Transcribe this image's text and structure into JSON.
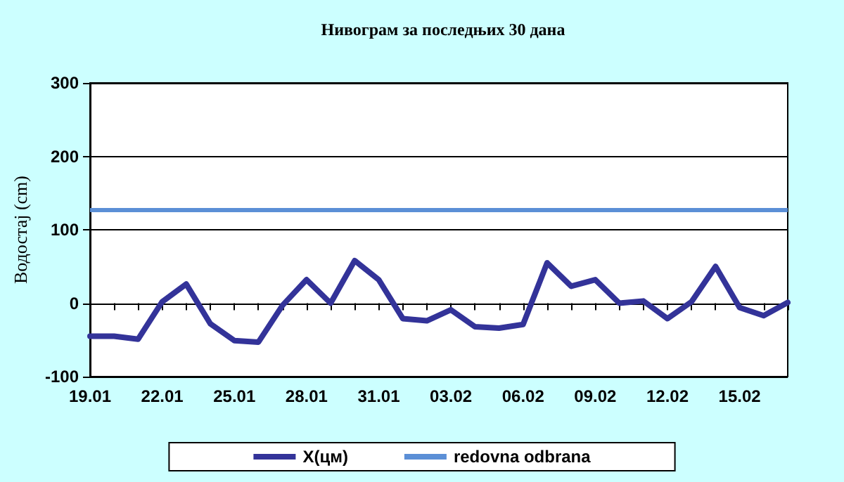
{
  "chart_data": {
    "type": "line",
    "title": "Нивограм за последњих 30 дана",
    "ylabel": "Водостај (cm)",
    "categories": [
      "19.01",
      null,
      null,
      "22.01",
      null,
      null,
      "25.01",
      null,
      null,
      "28.01",
      null,
      null,
      "31.01",
      null,
      null,
      "03.02",
      null,
      null,
      "06.02",
      null,
      null,
      "09.02",
      null,
      null,
      "12.02",
      null,
      null,
      "15.02",
      null,
      null
    ],
    "series": [
      {
        "name": "X(цм)",
        "color": "#333399",
        "values": [
          -45,
          -45,
          -49,
          2,
          26,
          -28,
          -51,
          -53,
          -3,
          32,
          0,
          58,
          32,
          -21,
          -24,
          -9,
          -32,
          -34,
          -29,
          55,
          23,
          32,
          0,
          3,
          -21,
          2,
          50,
          -6,
          -17,
          1
        ]
      }
    ],
    "ref_lines": [
      {
        "axis": "y",
        "value": 128,
        "label": "redovna odbrana",
        "color": "#5b8fd6"
      }
    ],
    "ylim": [
      -100,
      300
    ],
    "yticks": [
      -100,
      0,
      100,
      200,
      300
    ],
    "grid": "y",
    "legend": "bottom",
    "marker": "none",
    "line_style": "solid"
  }
}
